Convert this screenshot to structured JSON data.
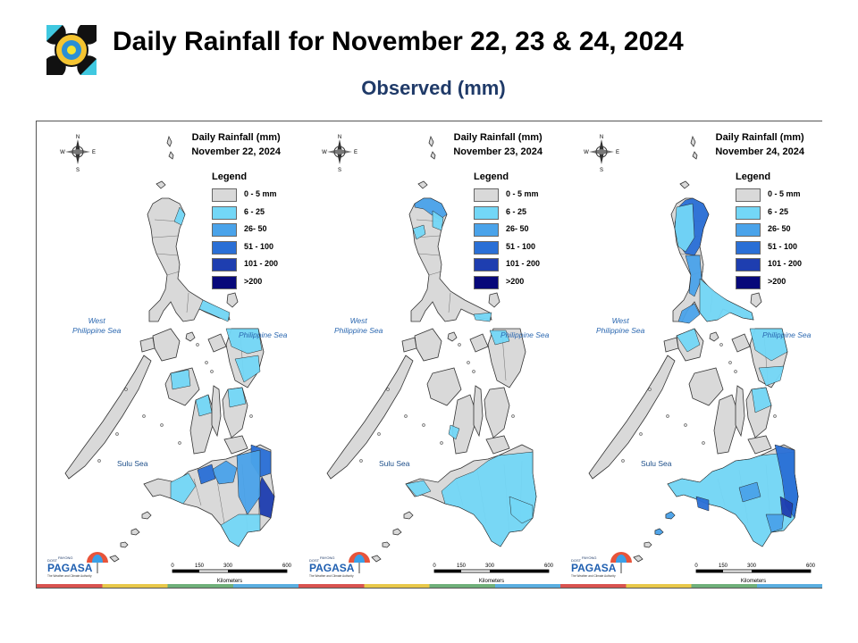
{
  "header": {
    "title": "Daily Rainfall for November 22, 23 & 24, 2024",
    "subtitle": "Observed (mm)"
  },
  "legend": {
    "title": "Legend",
    "items": [
      {
        "label": "0 - 5 mm",
        "color": "#d9d9d9"
      },
      {
        "label": "6 - 25",
        "color": "#73d7f7"
      },
      {
        "label": "26- 50",
        "color": "#4aa3ea"
      },
      {
        "label": "51 - 100",
        "color": "#2a6fd6"
      },
      {
        "label": "101 - 200",
        "color": "#1e3eb0"
      },
      {
        "label": ">200",
        "color": "#07087a"
      }
    ]
  },
  "panels": [
    {
      "heading": "Daily Rainfall (mm)",
      "date": "November 22, 2024"
    },
    {
      "heading": "Daily Rainfall (mm)",
      "date": "November 23, 2024"
    },
    {
      "heading": "Daily Rainfall (mm)",
      "date": "November 24, 2024"
    }
  ],
  "seas": {
    "west_line1": "West",
    "west_line2": "Philippine Sea",
    "east": "Philippine Sea",
    "sulu": "Sulu Sea"
  },
  "scale": {
    "ticks": [
      "0",
      "150",
      "300",
      "600"
    ],
    "unit": "Kilometers"
  },
  "compass": {
    "n": "N",
    "s": "S",
    "e": "E",
    "w": "W"
  },
  "branding": {
    "dost": "DOST",
    "payong": "PAYONG",
    "name": "PAGASA",
    "tagline": "The Weather and Climate Authority"
  },
  "colors": {
    "land_dry": "#d9d9d9",
    "title_blue": "#1f3a68",
    "stripe": [
      "#d9534f",
      "#e8c84a",
      "#6fb07a",
      "#5aaee0"
    ]
  }
}
